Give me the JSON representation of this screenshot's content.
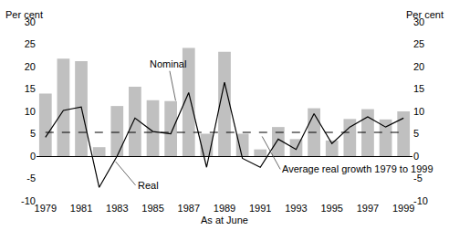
{
  "chart_data": {
    "type": "bar",
    "x": [
      1979,
      1980,
      1981,
      1982,
      1983,
      1984,
      1985,
      1986,
      1987,
      1988,
      1989,
      1990,
      1991,
      1992,
      1993,
      1994,
      1995,
      1996,
      1997,
      1998,
      1999
    ],
    "series": [
      {
        "name": "Nominal",
        "type": "bar",
        "color": "#c0c0c0",
        "values": [
          14,
          21.8,
          21.2,
          2,
          11.2,
          15.5,
          12.5,
          12.3,
          24.2,
          5,
          23.3,
          5,
          1.5,
          6.5,
          3.8,
          10.7,
          3.5,
          8.3,
          10.5,
          8.2,
          10
        ]
      },
      {
        "name": "Real",
        "type": "line",
        "color": "#000000",
        "values": [
          4.2,
          10.2,
          11,
          -7,
          0,
          8.5,
          5.5,
          5,
          14.2,
          -2.5,
          16.5,
          -0.5,
          -2.5,
          3.8,
          1.5,
          9.5,
          2.8,
          6.5,
          8.8,
          6.5,
          8.5
        ]
      }
    ],
    "average": {
      "label": "Average real growth 1979 to 1999",
      "value": 5.3,
      "line_style": "dashed",
      "color": "#000000"
    },
    "xlabel": "As at June",
    "ylabel": "Per cent",
    "y2label": "Per cent",
    "xlim": [
      1978.5,
      1999.5
    ],
    "xticks": [
      1979,
      1981,
      1983,
      1985,
      1987,
      1989,
      1991,
      1993,
      1995,
      1997,
      1999
    ],
    "ylim": [
      -10,
      30
    ],
    "yticks": [
      -10,
      -5,
      0,
      5,
      10,
      15,
      20,
      25,
      30
    ],
    "y2lim": [
      -10,
      30
    ],
    "y2ticks": [
      -10,
      -5,
      0,
      5,
      10,
      15,
      20,
      25,
      30
    ],
    "grid": false
  }
}
